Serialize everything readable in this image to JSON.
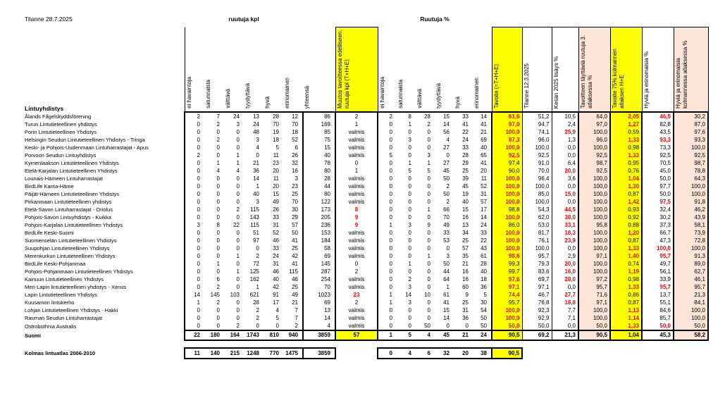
{
  "title": "Tilanne 28.7.2025",
  "group_labels": {
    "kpl": "ruutuja kpl",
    "pct": "Ruutuja %"
  },
  "row_header": "Lintuyhdistys",
  "columns_kpl": [
    "ei havaintoja",
    "satunnaista",
    "välttävä",
    "tyydyttävä",
    "hyvä",
    "erinomainen",
    "yhteensä",
    "Muutos tavoitteessa edelliseen, ruutuja kpl (T+H+E)"
  ],
  "columns_pct": [
    "ei havaintoja",
    "satunnaista",
    "välttävä",
    "tyydyttävä",
    "hyvä",
    "erinomainen",
    "Tavoite (=T+H+E)",
    "Tilanne 12.3.2025",
    "Kesän 2025 lisäys %",
    "Tavoitteen täyttäviä ruutuja 3. atlaksessa %",
    "Tavoite 75% kolmannen atlaksen H+E",
    "Hyviä ja erinomaisia %",
    "Hyviä ja erinomaisia kolmannessa atlaksessa %"
  ],
  "colors": {
    "highlight": "#FFFF00",
    "band": "#FCE4D6",
    "alert_text": "#FF0000"
  },
  "done_label": "valmis",
  "rows": [
    {
      "name": "Ålands Fågelskyddsförening",
      "values": [
        2,
        7,
        24,
        13,
        28,
        12,
        86,
        "2",
        2,
        8,
        28,
        15,
        33,
        14,
        "61,6",
        "51,2",
        "10,5",
        "64,0",
        "2,05",
        "46,5",
        "30,2"
      ],
      "red": [
        14,
        18,
        19
      ]
    },
    {
      "name": "Turun Lintutieteellinen yhdistys",
      "values": [
        0,
        2,
        3,
        24,
        70,
        70,
        169,
        "1",
        0,
        1,
        2,
        14,
        41,
        41,
        "97,0",
        "94,7",
        "2,4",
        "97,0",
        "1,27",
        "82,8",
        "87,0"
      ],
      "red": [
        14,
        18
      ]
    },
    {
      "name": "Porin Lintutieteellinen Yhdistys",
      "values": [
        0,
        0,
        0,
        48,
        19,
        18,
        85,
        "valmis",
        0,
        0,
        0,
        56,
        22,
        21,
        "100,0",
        "74,1",
        "25,9",
        "100,0",
        "0,59",
        "43,5",
        "97,6"
      ],
      "red": [
        14,
        16
      ]
    },
    {
      "name": "Helsingin Seudun Lintutieteellinen Yhdistys - Tringa",
      "values": [
        0,
        2,
        0,
        3,
        18,
        52,
        75,
        "valmis",
        0,
        3,
        0,
        4,
        24,
        69,
        "97,3",
        "96,0",
        "1,3",
        "96,0",
        "1,33",
        "93,3",
        "93,3"
      ],
      "red": [
        14,
        18,
        19
      ]
    },
    {
      "name": "Keski- ja Pohjois-Uudenmaan Lintuharrastajat - Apus",
      "values": [
        0,
        0,
        0,
        4,
        5,
        6,
        15,
        "valmis",
        0,
        0,
        0,
        27,
        33,
        40,
        "100,0",
        "100,0",
        "0,0",
        "100,0",
        "0,98",
        "73,3",
        "100,0"
      ],
      "red": [
        14
      ]
    },
    {
      "name": "Porvoon Seudun Lintuyhdistys",
      "values": [
        2,
        0,
        1,
        0,
        11,
        26,
        40,
        "valmis",
        5,
        0,
        3,
        0,
        28,
        65,
        "92,5",
        "92,5",
        "0,0",
        "92,5",
        "1,33",
        "92,5",
        "92,5"
      ],
      "red": [
        14,
        18
      ]
    },
    {
      "name": "Kymenlaakson Lintutieteellinen Yhdistys",
      "values": [
        0,
        1,
        1,
        21,
        23,
        32,
        78,
        "0",
        0,
        1,
        1,
        27,
        29,
        41,
        "97,4",
        "91,0",
        "6,4",
        "98,7",
        "0,95",
        "70,5",
        "98,7"
      ],
      "red": []
    },
    {
      "name": "Etelä-Karjalan Lintutieteellinen Yhdistys",
      "values": [
        0,
        4,
        4,
        36,
        20,
        16,
        80,
        "1",
        0,
        5,
        5,
        45,
        25,
        20,
        "90,0",
        "70,0",
        "20,0",
        "92,5",
        "0,76",
        "45,0",
        "78,8"
      ],
      "red": [
        16
      ]
    },
    {
      "name": "Lounais-Hämeen Lintuharrastajat",
      "values": [
        0,
        0,
        0,
        14,
        11,
        3,
        28,
        "valmis",
        0,
        0,
        0,
        50,
        39,
        11,
        "100,0",
        "96,4",
        "3,6",
        "100,0",
        "1,04",
        "50,0",
        "64,3"
      ],
      "red": [
        14,
        18
      ]
    },
    {
      "name": "BirdLife Kanta-Häme",
      "values": [
        0,
        0,
        0,
        1,
        20,
        23,
        44,
        "valmis",
        0,
        0,
        0,
        2,
        45,
        52,
        "100,0",
        "100,0",
        "0,0",
        "100,0",
        "1,30",
        "97,7",
        "100,0"
      ],
      "red": [
        14,
        18
      ]
    },
    {
      "name": "Päijät-Hämeen Lintutieteellinen Yhdistys",
      "values": [
        0,
        0,
        0,
        40,
        15,
        25,
        80,
        "valmis",
        0,
        0,
        0,
        50,
        19,
        31,
        "100,0",
        "85,0",
        "15,0",
        "100,0",
        "0,87",
        "50,0",
        "100,0"
      ],
      "red": [
        14,
        16
      ]
    },
    {
      "name": "Pirkanmaan Lintutieteellinen yhdistys",
      "values": [
        0,
        0,
        0,
        3,
        49,
        70,
        122,
        "valmis",
        0,
        0,
        0,
        2,
        40,
        57,
        "100,0",
        "100,0",
        "0,0",
        "100,0",
        "1,42",
        "97,5",
        "91,8"
      ],
      "red": [
        14,
        18,
        19
      ]
    },
    {
      "name": "Etelä-Savon Lintuharrastajat - Oriolus",
      "values": [
        0,
        0,
        2,
        115,
        26,
        30,
        173,
        "8",
        0,
        0,
        1,
        66,
        15,
        17,
        "98,8",
        "54,3",
        "44,5",
        "100,0",
        "0,93",
        "32,4",
        "46,2"
      ],
      "red": [
        7,
        16
      ]
    },
    {
      "name": "Pohjois-Savon Lintuyhdistys - Kuikka",
      "values": [
        0,
        0,
        0,
        143,
        33,
        29,
        205,
        "9",
        0,
        0,
        0,
        70,
        16,
        14,
        "100,0",
        "62,0",
        "38,0",
        "100,0",
        "0,92",
        "30,2",
        "43,9"
      ],
      "red": [
        7,
        14,
        16
      ]
    },
    {
      "name": "Pohjois-Karjalan Lintutieteellinen Yhdistys",
      "values": [
        3,
        8,
        22,
        115,
        31,
        57,
        236,
        "9",
        1,
        3,
        9,
        49,
        13,
        24,
        "86,0",
        "53,0",
        "33,1",
        "95,8",
        "0,88",
        "37,3",
        "58,1"
      ],
      "red": [
        7,
        16
      ]
    },
    {
      "name": "BirdLife Keski-Suomi",
      "values": [
        0,
        0,
        0,
        51,
        52,
        50,
        153,
        "valmis",
        0,
        0,
        0,
        33,
        34,
        33,
        "100,0",
        "81,7",
        "18,3",
        "100,0",
        "1,20",
        "66,7",
        "73,9"
      ],
      "red": [
        14,
        16,
        18
      ]
    },
    {
      "name": "Suomenselän Lintutieteellinen Yhdistys",
      "values": [
        0,
        0,
        0,
        97,
        46,
        41,
        184,
        "valmis",
        0,
        0,
        0,
        53,
        25,
        22,
        "100,0",
        "76,1",
        "23,9",
        "100,0",
        "0,87",
        "47,3",
        "72,8"
      ],
      "red": [
        14,
        16
      ]
    },
    {
      "name": "Suupohjan Lintutieteellinen Yhdistys",
      "values": [
        0,
        0,
        0,
        0,
        33,
        25,
        58,
        "valmis",
        0,
        0,
        0,
        0,
        57,
        43,
        "100,0",
        "100,0",
        "0,0",
        "100,0",
        "1,33",
        "100,0",
        "100,0"
      ],
      "red": [
        14,
        18,
        19
      ]
    },
    {
      "name": "Merenkurkun Lintutieteellinen Yhdistys",
      "values": [
        0,
        0,
        1,
        2,
        24,
        42,
        69,
        "valmis",
        0,
        0,
        1,
        3,
        35,
        61,
        "98,6",
        "95,7",
        "2,9",
        "97,1",
        "1,40",
        "95,7",
        "91,3"
      ],
      "red": [
        14,
        18,
        19
      ]
    },
    {
      "name": "BirdLife Keski-Pohjanmaa",
      "values": [
        0,
        1,
        0,
        72,
        31,
        41,
        145,
        "0",
        0,
        1,
        0,
        50,
        21,
        28,
        "99,3",
        "79,3",
        "20,0",
        "100,0",
        "0,74",
        "49,7",
        "89,0"
      ],
      "red": [
        16
      ]
    },
    {
      "name": "Pohjois-Pohjanmaan Lintutieteellinen Yhdistys",
      "values": [
        0,
        0,
        1,
        125,
        46,
        115,
        287,
        "2",
        0,
        0,
        0,
        44,
        16,
        40,
        "99,7",
        "83,6",
        "16,0",
        "100,0",
        "1,19",
        "56,1",
        "62,7"
      ],
      "red": [
        16,
        18
      ]
    },
    {
      "name": "Kainuun Lintutieteellinen Yhdistys",
      "values": [
        0,
        6,
        0,
        162,
        40,
        46,
        254,
        "valmis",
        0,
        2,
        0,
        64,
        16,
        18,
        "97,6",
        "69,7",
        "28,0",
        "97,2",
        "0,98",
        "33,9",
        "46,1"
      ],
      "red": [
        14,
        16
      ]
    },
    {
      "name": "Meri-Lapin lintutieteellinen yhdistys - Xenus",
      "values": [
        0,
        2,
        0,
        1,
        42,
        25,
        70,
        "valmis",
        0,
        3,
        0,
        1,
        60,
        36,
        "97,1",
        "97,1",
        "0,0",
        "95,7",
        "1,33",
        "95,7",
        "95,7"
      ],
      "red": [
        14,
        18,
        19
      ]
    },
    {
      "name": "Lapin Lintutieteellinen Yhdistys",
      "values": [
        14,
        145,
        103,
        621,
        91,
        49,
        1023,
        "23",
        1,
        14,
        10,
        61,
        9,
        5,
        "74,4",
        "46,7",
        "27,7",
        "71,6",
        "0,86",
        "13,7",
        "21,3"
      ],
      "red": [
        7,
        14,
        16
      ]
    },
    {
      "name": "Kuusamon lintukerho",
      "values": [
        1,
        2,
        0,
        28,
        17,
        21,
        69,
        "2",
        1,
        3,
        0,
        41,
        25,
        30,
        "95,7",
        "76,8",
        "18,8",
        "97,1",
        "0,87",
        "55,1",
        "84,1"
      ],
      "red": [
        16
      ]
    },
    {
      "name": "Lohjan Lintutieteellinen Yhdistys - Hakki",
      "values": [
        0,
        0,
        0,
        2,
        4,
        7,
        13,
        "valmis",
        0,
        0,
        0,
        15,
        31,
        54,
        "100,0",
        "92,3",
        "7,7",
        "100,0",
        "1,13",
        "84,6",
        "100,0"
      ],
      "red": [
        14,
        18
      ]
    },
    {
      "name": "Rauman Seudun Lintuharrastajat",
      "values": [
        0,
        0,
        0,
        2,
        5,
        7,
        14,
        "valmis",
        0,
        0,
        0,
        14,
        36,
        50,
        "100,0",
        "92,9",
        "7,1",
        "100,0",
        "1,14",
        "85,7",
        "100,0"
      ],
      "red": [
        14,
        18
      ]
    },
    {
      "name": "Ostrobothnia Australis",
      "values": [
        0,
        0,
        2,
        0,
        0,
        2,
        4,
        "valmis",
        0,
        0,
        50,
        0,
        0,
        50,
        "50,0",
        "50,0",
        "0,0",
        "50,0",
        "1,33",
        "50,0",
        "50,0"
      ],
      "red": [
        14,
        18,
        19
      ]
    },
    {
      "name": "Suomi",
      "type": "total",
      "values": [
        22,
        180,
        164,
        1743,
        810,
        940,
        3859,
        "57",
        1,
        5,
        4,
        45,
        21,
        24,
        "90,5",
        "69,2",
        "21,3",
        "90,5",
        "1,04",
        "45,3",
        "58,2"
      ],
      "red": []
    },
    {
      "name": "Kolmas lintuatlas 2006-2010",
      "type": "atlas",
      "values": [
        11,
        140,
        215,
        1248,
        770,
        1475,
        3859,
        "",
        0,
        4,
        6,
        32,
        20,
        38,
        "90,5",
        "",
        "",
        "",
        "",
        "",
        ""
      ],
      "red": []
    }
  ]
}
